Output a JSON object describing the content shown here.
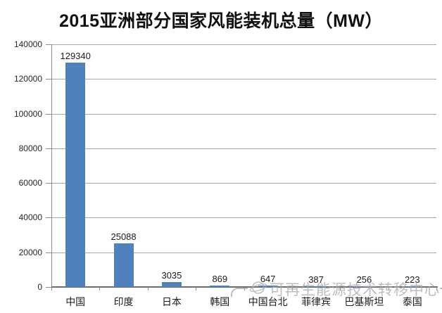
{
  "title": "2015亚洲部分国家风能装机总量（MW）",
  "watermark": {
    "text": "可再生能源技术转移中心",
    "logo": "globe-orbit-icon",
    "color": "#a8a8a8"
  },
  "colors": {
    "background": "#ffffff",
    "bar": "#4f81bd",
    "gridline": "#a6a6a6",
    "axis": "#6e6e6e",
    "label": "#1a1a1a",
    "title": "#111111"
  },
  "chart_data": {
    "type": "bar",
    "title": "2015亚洲部分国家风能装机总量（MW）",
    "categories": [
      "中国",
      "印度",
      "日本",
      "韩国",
      "中国台北",
      "菲律宾",
      "巴基斯坦",
      "泰国"
    ],
    "values": [
      129340,
      25088,
      3035,
      869,
      647,
      387,
      256,
      223
    ],
    "data_labels": [
      "129340",
      "25088",
      "3035",
      "869",
      "647",
      "387",
      "256",
      "223"
    ],
    "xlabel": "",
    "ylabel": "",
    "ylim": [
      0,
      140000
    ],
    "yticks": [
      0,
      20000,
      40000,
      60000,
      80000,
      100000,
      120000,
      140000
    ],
    "ytick_labels": [
      "0",
      "20000",
      "40000",
      "60000",
      "80000",
      "100000",
      "120000",
      "140000"
    ],
    "grid": true,
    "legend": false,
    "bar_color": "#4f81bd"
  }
}
